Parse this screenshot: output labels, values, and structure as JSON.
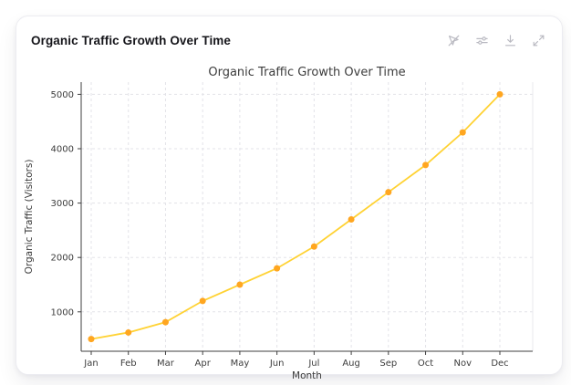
{
  "card": {
    "title": "Organic Traffic Growth Over Time",
    "toolbar_icons": [
      "pointer-off",
      "filter-sliders",
      "download",
      "expand"
    ]
  },
  "chart_data": {
    "type": "line",
    "title": "Organic Traffic Growth Over Time",
    "categories": [
      "Jan",
      "Feb",
      "Mar",
      "Apr",
      "May",
      "Jun",
      "Jul",
      "Aug",
      "Sep",
      "Oct",
      "Nov",
      "Dec"
    ],
    "series": [
      {
        "name": "Organic Traffic",
        "values": [
          500,
          620,
          810,
          1200,
          1500,
          1800,
          2200,
          2700,
          3200,
          3700,
          4300,
          5000
        ]
      }
    ],
    "xlabel": "Month",
    "ylabel": "Organic Traffic (Visitors)",
    "ylim": [
      275,
      5225
    ],
    "yticks": [
      1000,
      2000,
      3000,
      4000,
      5000
    ],
    "grid": true,
    "grid_style": "dashed",
    "legend": "none",
    "colors": {
      "line": "#FFD233",
      "marker": "#FFA620",
      "grid": "#e3e3e8",
      "spine": "#3f3f3f",
      "text": "#3c3c3c"
    }
  }
}
